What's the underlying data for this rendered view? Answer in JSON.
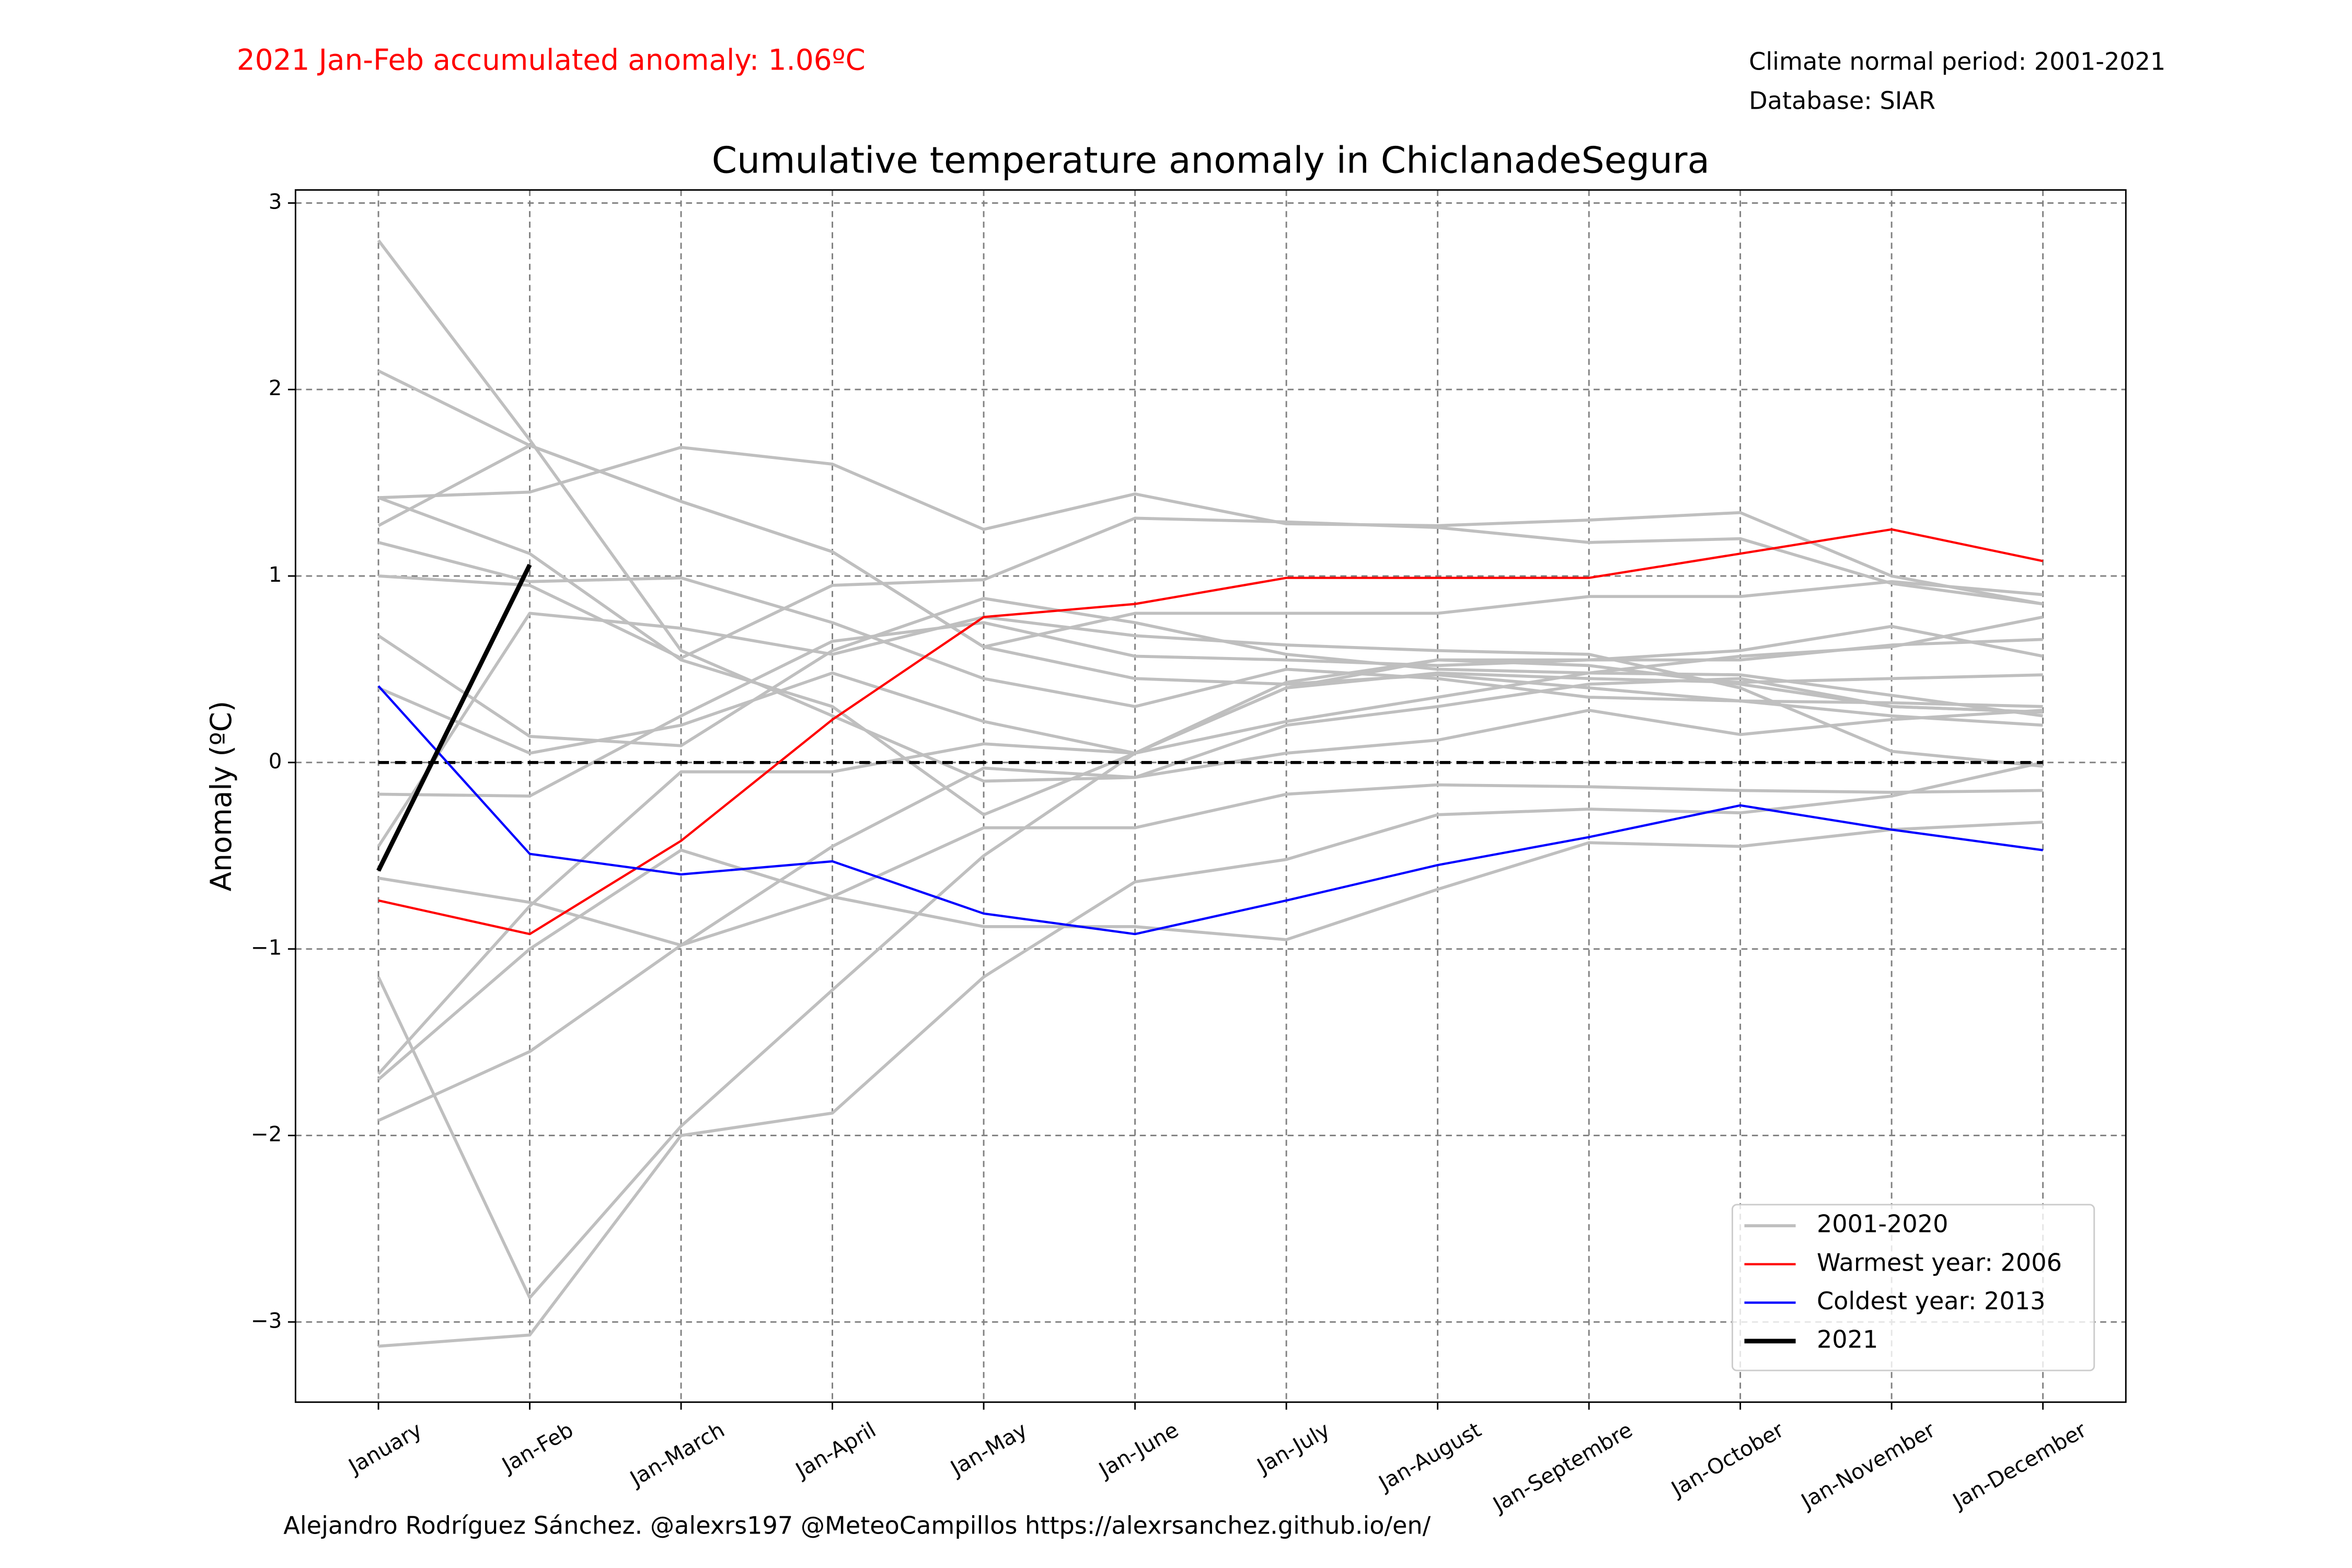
{
  "chart_data": {
    "type": "line",
    "title": "Cumulative temperature anomaly in ChiclanadeSegura",
    "annotation": "2021 Jan-Feb accumulated anomaly: 1.06ºC",
    "info": [
      "Climate normal period: 2001-2021",
      "Database: SIAR"
    ],
    "credit": "Alejandro Rodríguez Sánchez. @alexrs197 @MeteoCampillos   https://alexrsanchez.github.io/en/",
    "ylabel": "Anomaly (ºC)",
    "categories": [
      "January",
      "Jan-Feb",
      "Jan-March",
      "Jan-April",
      "Jan-May",
      "Jan-June",
      "Jan-July",
      "Jan-August",
      "Jan-Septembre",
      "Jan-October",
      "Jan-November",
      "Jan-December"
    ],
    "ylim": [
      -3.43,
      3.07
    ],
    "yticks": [
      {
        "value": -3,
        "label": "−3"
      },
      {
        "value": -2,
        "label": "−2"
      },
      {
        "value": -1,
        "label": "−1"
      },
      0,
      1,
      2,
      3
    ],
    "grid": true,
    "legend": "lower right",
    "reference_line": 0,
    "series": [
      {
        "name": "2001-2020",
        "color": "#bfbfbf",
        "lines": [
          [
            2.8,
            1.73,
            0.6,
            0.25,
            -0.1,
            -0.08,
            0.2,
            0.3,
            0.42,
            0.45,
            0.3,
            0.27
          ],
          [
            2.1,
            1.7,
            1.4,
            1.13,
            0.62,
            0.45,
            0.42,
            0.47,
            0.4,
            0.33,
            0.25,
            0.2
          ],
          [
            1.42,
            1.45,
            1.69,
            1.6,
            1.25,
            1.44,
            1.28,
            1.27,
            1.3,
            1.34,
            1.0,
            0.85
          ],
          [
            1.27,
            1.7,
            1.4,
            1.13,
            0.62,
            0.8,
            0.8,
            0.8,
            0.89,
            0.89,
            0.97,
            0.9
          ],
          [
            1.42,
            1.12,
            0.55,
            0.3,
            -0.28,
            0.05,
            0.43,
            0.55,
            0.55,
            0.6,
            0.73,
            0.57
          ],
          [
            1.18,
            0.97,
            0.99,
            0.75,
            0.45,
            0.3,
            0.5,
            0.45,
            0.35,
            0.33,
            0.32,
            0.3
          ],
          [
            1.0,
            0.95,
            0.56,
            0.95,
            0.98,
            1.31,
            1.29,
            1.26,
            1.18,
            1.2,
            0.96,
            0.85
          ],
          [
            0.68,
            0.14,
            0.09,
            0.6,
            0.88,
            0.75,
            0.58,
            0.5,
            0.48,
            0.47,
            0.36,
            0.25
          ],
          [
            -0.17,
            -0.18,
            0.25,
            0.65,
            0.75,
            0.57,
            0.55,
            0.52,
            0.55,
            0.55,
            0.63,
            0.66
          ],
          [
            -0.45,
            0.8,
            0.72,
            0.58,
            0.78,
            0.68,
            0.63,
            0.6,
            0.58,
            0.4,
            0.06,
            -0.02
          ],
          [
            -0.62,
            -0.75,
            -0.98,
            -0.72,
            -0.35,
            -0.35,
            -0.17,
            -0.12,
            -0.13,
            -0.15,
            -0.16,
            -0.15
          ],
          [
            -1.15,
            -2.87,
            -1.95,
            -1.22,
            -0.5,
            0.05,
            0.4,
            0.55,
            0.52,
            0.42,
            0.3,
            0.27
          ],
          [
            -1.67,
            -0.77,
            -0.05,
            -0.05,
            0.1,
            0.05,
            0.22,
            0.35,
            0.48,
            0.57,
            0.62,
            0.78
          ],
          [
            -1.7,
            -1.0,
            -0.47,
            -0.72,
            -0.88,
            -0.88,
            -0.95,
            -0.68,
            -0.43,
            -0.45,
            -0.36,
            -0.32
          ],
          [
            -1.92,
            -1.55,
            -0.98,
            -0.45,
            -0.03,
            -0.08,
            0.05,
            0.12,
            0.28,
            0.15,
            0.23,
            0.28
          ],
          [
            -3.13,
            -3.07,
            -2.0,
            -1.88,
            -1.15,
            -0.64,
            -0.52,
            -0.28,
            -0.25,
            -0.27,
            -0.18,
            0.0
          ],
          [
            0.4,
            0.05,
            0.2,
            0.48,
            0.22,
            0.05,
            0.4,
            0.48,
            0.45,
            0.43,
            0.45,
            0.47
          ]
        ]
      },
      {
        "name": "Warmest year: 2006",
        "color": "#ff0000",
        "values": [
          -0.74,
          -0.92,
          -0.42,
          0.23,
          0.78,
          0.85,
          0.99,
          0.99,
          0.99,
          1.12,
          1.25,
          1.08
        ]
      },
      {
        "name": "Coldest year: 2013",
        "color": "#0000ff",
        "values": [
          0.41,
          -0.49,
          -0.6,
          -0.53,
          -0.81,
          -0.92,
          -0.74,
          -0.55,
          -0.4,
          -0.23,
          -0.36,
          -0.47
        ]
      },
      {
        "name": "2021",
        "color": "#000000",
        "values": [
          -0.58,
          1.06,
          null,
          null,
          null,
          null,
          null,
          null,
          null,
          null,
          null,
          null
        ]
      }
    ]
  }
}
